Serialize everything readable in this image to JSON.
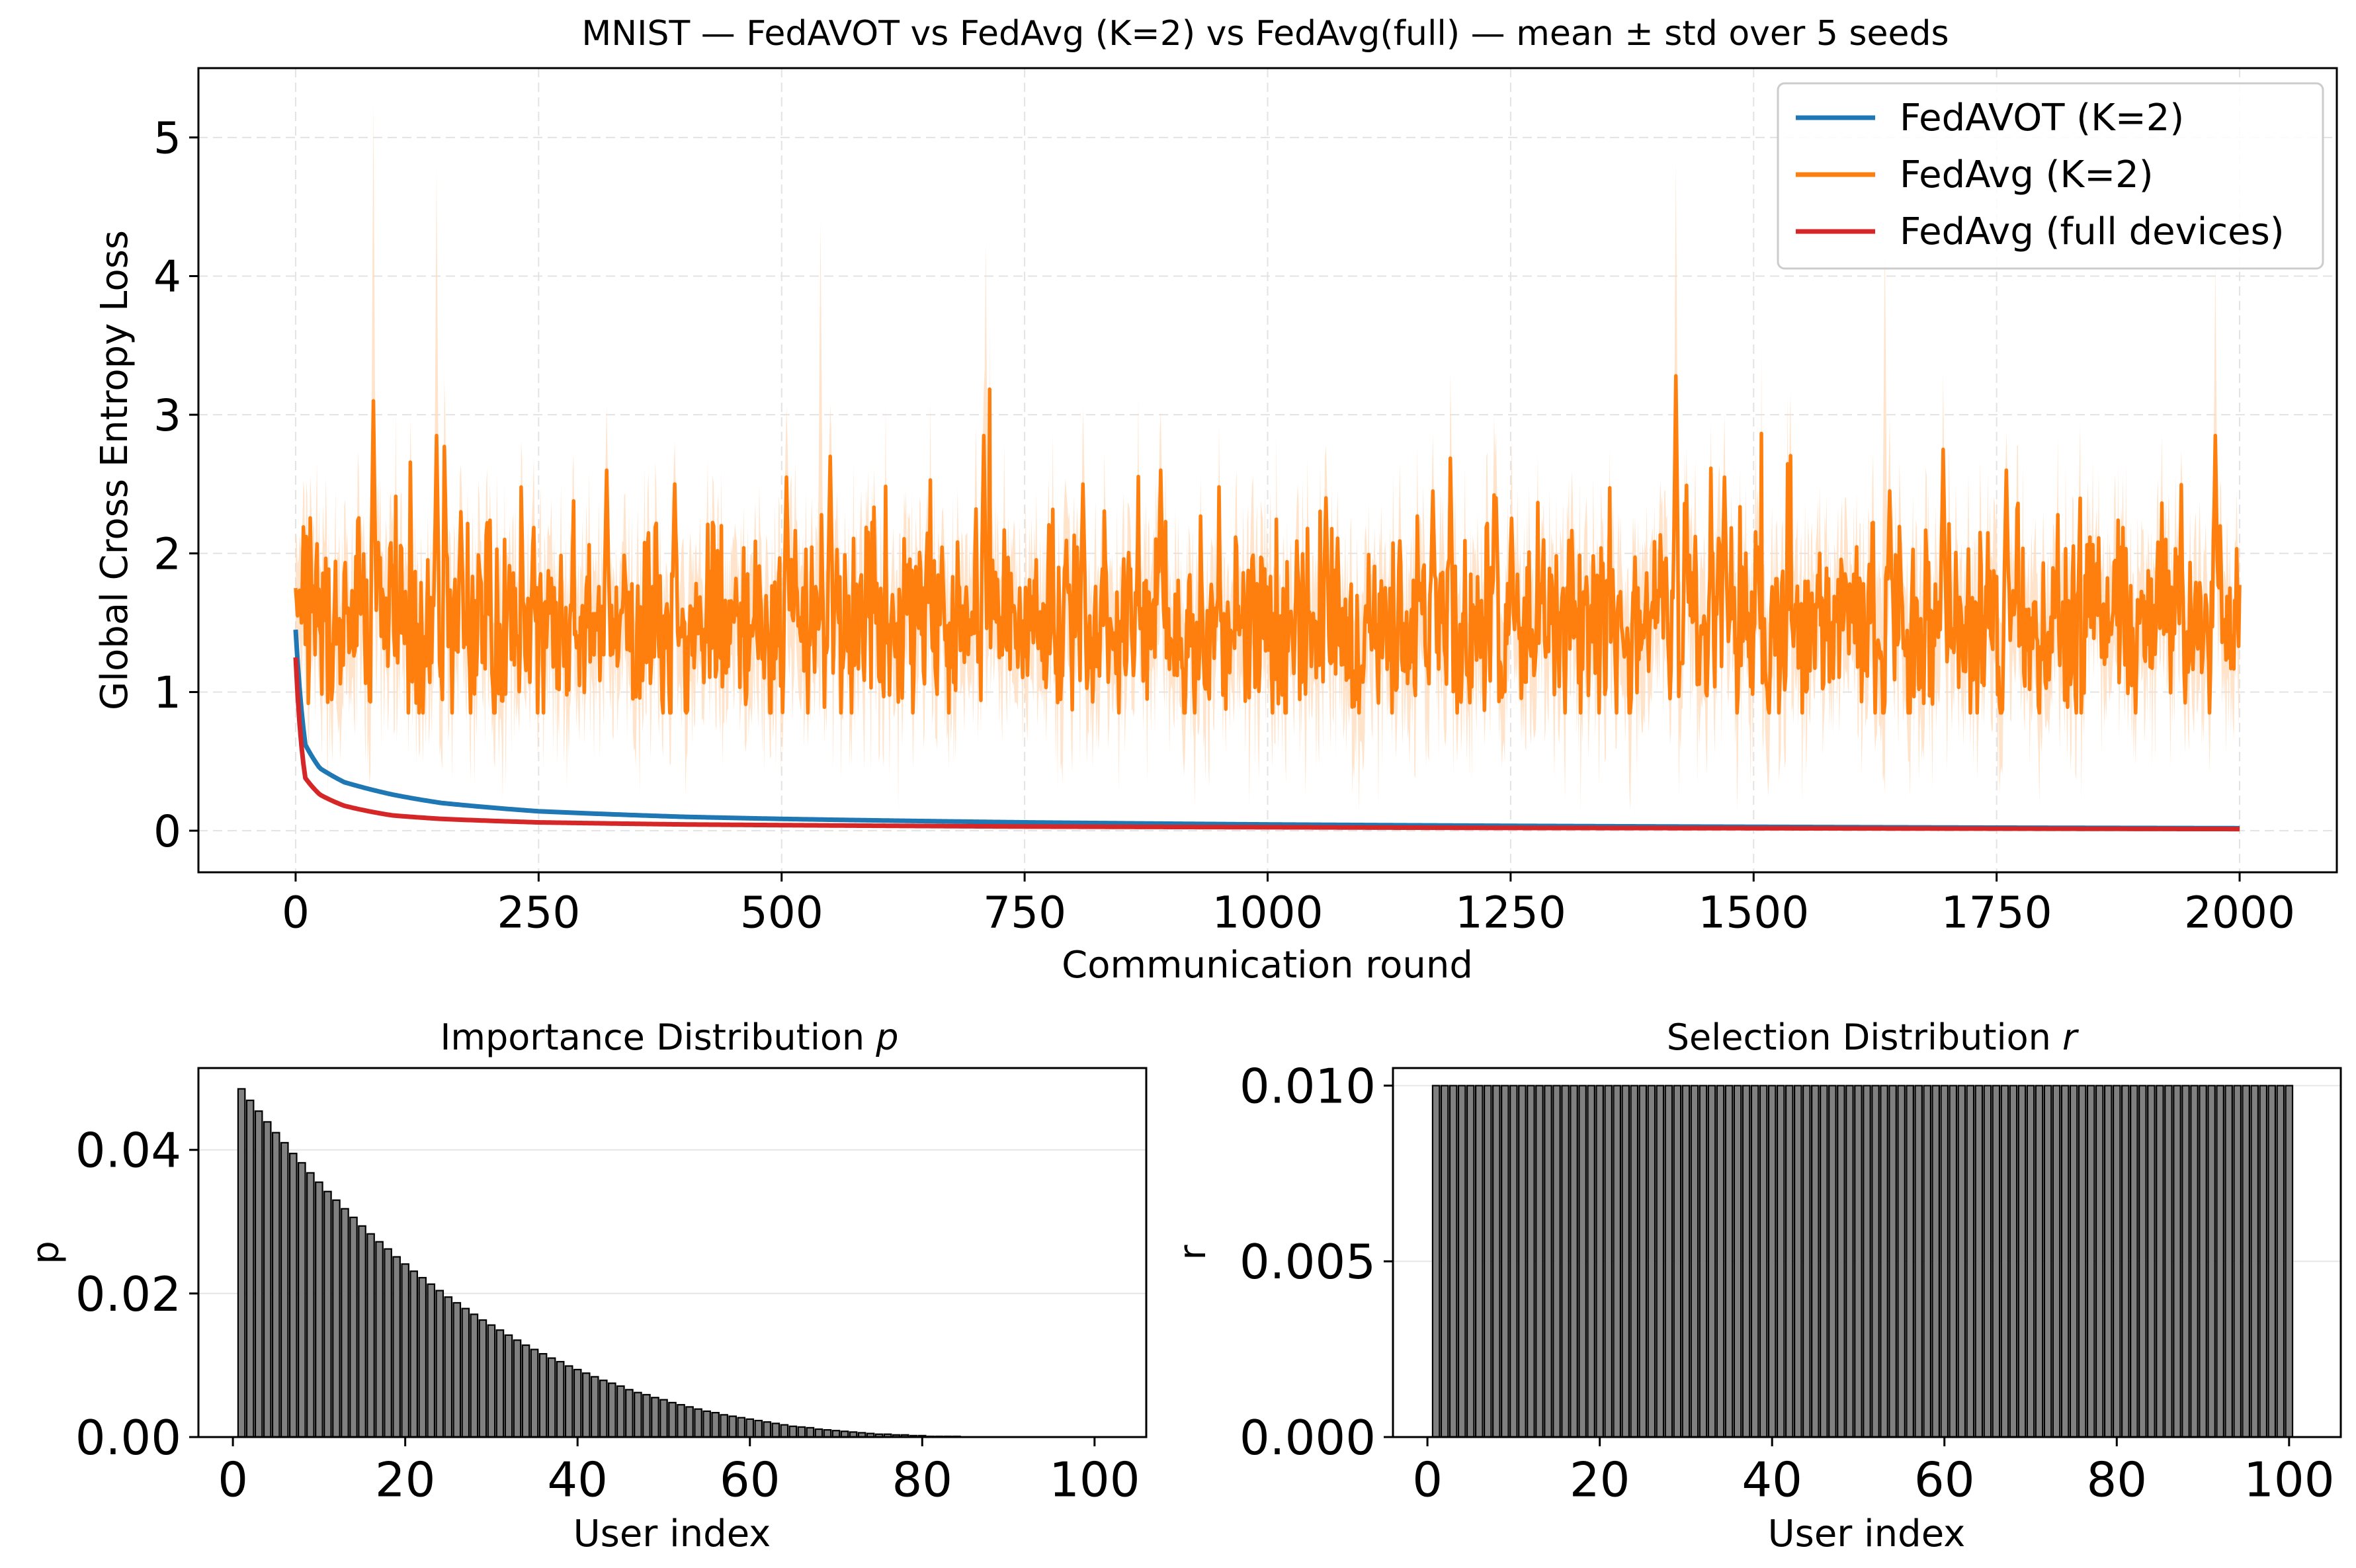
{
  "chart_data": [
    {
      "type": "line",
      "title": "MNIST — FedAVOT vs FedAvg (K=2) vs FedAvg(full) — mean ± std over 5 seeds",
      "xlabel": "Communication round",
      "ylabel": "Global Cross Entropy Loss",
      "xlim": [
        -100,
        2100
      ],
      "ylim": [
        -0.3,
        5.5
      ],
      "xticks": [
        0,
        250,
        500,
        750,
        1000,
        1250,
        1500,
        1750,
        2000
      ],
      "xtick_labels": [
        "0",
        "250",
        "500",
        "750",
        "1000",
        "1250",
        "1500",
        "1750",
        "2000"
      ],
      "yticks": [
        0,
        1,
        2,
        3,
        4,
        5
      ],
      "ytick_labels": [
        "0",
        "1",
        "2",
        "3",
        "4",
        "5"
      ],
      "grid": true,
      "legend_position": "top-right",
      "x_range": [
        0,
        2000
      ],
      "series": [
        {
          "name": "FedAVOT (K=2)",
          "color": "#1f77b4",
          "model": "decay",
          "points": [
            [
              0,
              1.45
            ],
            [
              10,
              0.62
            ],
            [
              25,
              0.45
            ],
            [
              50,
              0.35
            ],
            [
              100,
              0.26
            ],
            [
              150,
              0.2
            ],
            [
              250,
              0.14
            ],
            [
              400,
              0.1
            ],
            [
              500,
              0.085
            ],
            [
              750,
              0.06
            ],
            [
              1000,
              0.045
            ],
            [
              1250,
              0.035
            ],
            [
              1500,
              0.028
            ],
            [
              1750,
              0.022
            ],
            [
              2000,
              0.018
            ]
          ]
        },
        {
          "name": "FedAvg (K=2)",
          "color": "#ff7f0e",
          "band_color": "#ffdab9",
          "model": "noisy",
          "mean_level": 1.5,
          "noise_amplitude": 0.33,
          "band_std": 0.42,
          "start_value": 1.75,
          "peaks": [
            [
              80,
              3.1
            ],
            [
              145,
              2.85
            ],
            [
              170,
              2.3
            ],
            [
              320,
              2.6
            ],
            [
              390,
              2.5
            ],
            [
              505,
              2.55
            ],
            [
              550,
              2.7
            ],
            [
              708,
              2.85
            ],
            [
              810,
              2.5
            ],
            [
              890,
              2.6
            ],
            [
              1060,
              2.4
            ],
            [
              1170,
              2.45
            ],
            [
              1235,
              2.4
            ],
            [
              1420,
              3.28
            ],
            [
              1470,
              2.55
            ],
            [
              1640,
              2.45
            ],
            [
              1695,
              2.75
            ],
            [
              1760,
              2.6
            ],
            [
              1975,
              2.85
            ]
          ],
          "band_peaks": [
            [
              80,
              5.25
            ],
            [
              145,
              4.77
            ],
            [
              540,
              4.4
            ],
            [
              710,
              4.25
            ],
            [
              1420,
              4.82
            ],
            [
              1635,
              4.3
            ],
            [
              1975,
              4.1
            ]
          ]
        },
        {
          "name": "FedAvg (full devices)",
          "color": "#d62728",
          "model": "decay",
          "points": [
            [
              0,
              1.25
            ],
            [
              10,
              0.38
            ],
            [
              25,
              0.26
            ],
            [
              50,
              0.18
            ],
            [
              100,
              0.11
            ],
            [
              150,
              0.085
            ],
            [
              250,
              0.06
            ],
            [
              400,
              0.045
            ],
            [
              500,
              0.04
            ],
            [
              750,
              0.03
            ],
            [
              1000,
              0.025
            ],
            [
              1250,
              0.02
            ],
            [
              1500,
              0.018
            ],
            [
              1750,
              0.015
            ],
            [
              2000,
              0.012
            ]
          ]
        }
      ]
    },
    {
      "type": "bar",
      "title": "Importance Distribution ",
      "title_symbol": "p",
      "xlabel": "User index",
      "ylabel": "p",
      "xlim": [
        -4,
        106
      ],
      "ylim": [
        0,
        0.0514
      ],
      "xticks": [
        0,
        20,
        40,
        60,
        80,
        100
      ],
      "xtick_labels": [
        "0",
        "20",
        "40",
        "60",
        "80",
        "100"
      ],
      "yticks": [
        0,
        0.02,
        0.04
      ],
      "ytick_labels": [
        "0.00",
        "0.02",
        "0.04"
      ],
      "grid": true,
      "bar_color": "#808080",
      "edge_color": "#000000",
      "n_bars": 100,
      "first_index": 1,
      "value_model": "p_i = 0.0485 * ((100 - i) / 99)^4.3",
      "values": [
        0.0485,
        0.0469,
        0.0454,
        0.0439,
        0.0424,
        0.041,
        0.0395,
        0.0382,
        0.0368,
        0.0355,
        0.0342,
        0.033,
        0.0318,
        0.0306,
        0.0294,
        0.0283,
        0.0272,
        0.0262,
        0.0251,
        0.0241,
        0.0231,
        0.0222,
        0.0213,
        0.0204,
        0.0195,
        0.0187,
        0.0179,
        0.0171,
        0.0163,
        0.0156,
        0.0149,
        0.0142,
        0.0135,
        0.0128,
        0.0122,
        0.0116,
        0.011,
        0.0105,
        0.0099,
        0.0094,
        0.0089,
        0.0084,
        0.0079,
        0.0075,
        0.0071,
        0.0066,
        0.0062,
        0.0059,
        0.0055,
        0.0052,
        0.0048,
        0.0045,
        0.0042,
        0.0039,
        0.0036,
        0.0034,
        0.0031,
        0.0029,
        0.0027,
        0.0025,
        0.0023,
        0.0021,
        0.0019,
        0.0017,
        0.0015,
        0.0014,
        0.0013,
        0.0011,
        0.001,
        0.0009,
        0.0008,
        0.0007,
        0.0006,
        0.0005,
        0.0004,
        0.0004,
        0.0003,
        0.0003,
        0.0002,
        0.0002,
        0.0001,
        0.0001,
        0.0001,
        0.0001,
        0.0,
        0.0,
        0.0,
        0.0,
        0.0,
        0.0,
        0.0,
        0.0,
        0.0,
        0.0,
        0.0,
        0.0,
        0.0,
        0.0,
        0.0,
        0.0
      ]
    },
    {
      "type": "bar",
      "title": "Selection Distribution ",
      "title_symbol": "r",
      "xlabel": "User index",
      "ylabel": "r",
      "xlim": [
        -4,
        106
      ],
      "ylim": [
        0,
        0.0105
      ],
      "xticks": [
        0,
        20,
        40,
        60,
        80,
        100
      ],
      "xtick_labels": [
        "0",
        "20",
        "40",
        "60",
        "80",
        "100"
      ],
      "yticks": [
        0,
        0.005,
        0.01
      ],
      "ytick_labels": [
        "0.000",
        "0.005",
        "0.010"
      ],
      "grid": true,
      "bar_color": "#808080",
      "edge_color": "#000000",
      "n_bars": 100,
      "first_index": 1,
      "constant_value": 0.01
    }
  ]
}
